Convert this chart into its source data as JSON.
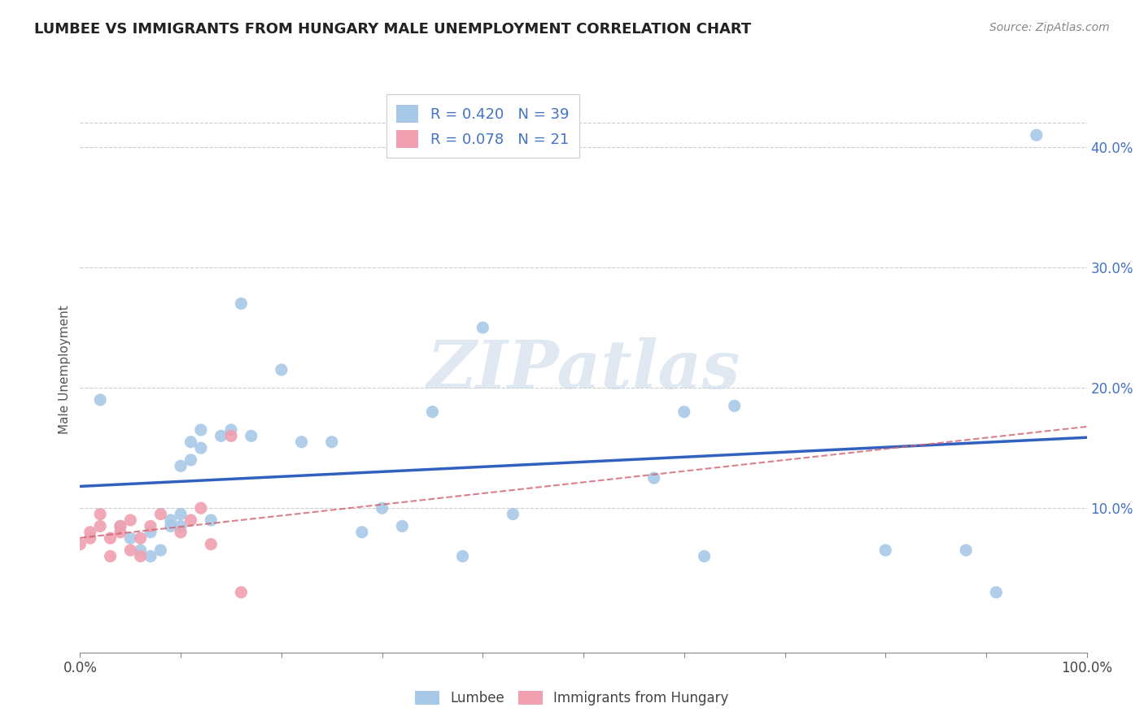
{
  "title": "LUMBEE VS IMMIGRANTS FROM HUNGARY MALE UNEMPLOYMENT CORRELATION CHART",
  "source": "Source: ZipAtlas.com",
  "ylabel": "Male Unemployment",
  "xlim": [
    0.0,
    1.0
  ],
  "ylim": [
    -0.02,
    0.45
  ],
  "xticks": [
    0.0,
    0.1,
    0.2,
    0.3,
    0.4,
    0.5,
    0.6,
    0.7,
    0.8,
    0.9,
    1.0
  ],
  "xticklabels_show": {
    "0.0": "0.0%",
    "1.0": "100.0%"
  },
  "ytick_positions": [
    0.0,
    0.1,
    0.2,
    0.3,
    0.4
  ],
  "ytick_labels": [
    "",
    "10.0%",
    "20.0%",
    "30.0%",
    "40.0%"
  ],
  "background_color": "#ffffff",
  "grid_color": "#cccccc",
  "lumbee_color": "#a8c8e8",
  "hungary_color": "#f0a0b0",
  "lumbee_R": 0.42,
  "lumbee_N": 39,
  "hungary_R": 0.078,
  "hungary_N": 21,
  "lumbee_line_color": "#3060c0",
  "hungary_line_color": "#d06070",
  "watermark": "ZIPatlas",
  "lumbee_x": [
    0.02,
    0.04,
    0.05,
    0.06,
    0.07,
    0.07,
    0.08,
    0.09,
    0.09,
    0.1,
    0.1,
    0.1,
    0.11,
    0.11,
    0.12,
    0.12,
    0.13,
    0.14,
    0.15,
    0.16,
    0.17,
    0.2,
    0.22,
    0.25,
    0.28,
    0.3,
    0.32,
    0.35,
    0.38,
    0.4,
    0.43,
    0.57,
    0.6,
    0.62,
    0.65,
    0.8,
    0.88,
    0.91,
    0.95
  ],
  "lumbee_y": [
    0.19,
    0.085,
    0.075,
    0.065,
    0.06,
    0.08,
    0.065,
    0.085,
    0.09,
    0.085,
    0.095,
    0.135,
    0.14,
    0.155,
    0.15,
    0.165,
    0.09,
    0.16,
    0.165,
    0.27,
    0.16,
    0.215,
    0.155,
    0.155,
    0.08,
    0.1,
    0.085,
    0.18,
    0.06,
    0.25,
    0.095,
    0.125,
    0.18,
    0.06,
    0.185,
    0.065,
    0.065,
    0.03,
    0.41
  ],
  "hungary_x": [
    0.0,
    0.01,
    0.01,
    0.02,
    0.02,
    0.03,
    0.03,
    0.04,
    0.04,
    0.05,
    0.05,
    0.06,
    0.06,
    0.07,
    0.08,
    0.1,
    0.11,
    0.12,
    0.13,
    0.15,
    0.16
  ],
  "hungary_y": [
    0.07,
    0.08,
    0.075,
    0.085,
    0.095,
    0.06,
    0.075,
    0.08,
    0.085,
    0.09,
    0.065,
    0.075,
    0.06,
    0.085,
    0.095,
    0.08,
    0.09,
    0.1,
    0.07,
    0.16,
    0.03
  ],
  "lumbee_legend_label": "Lumbee",
  "hungary_legend_label": "Immigrants from Hungary"
}
